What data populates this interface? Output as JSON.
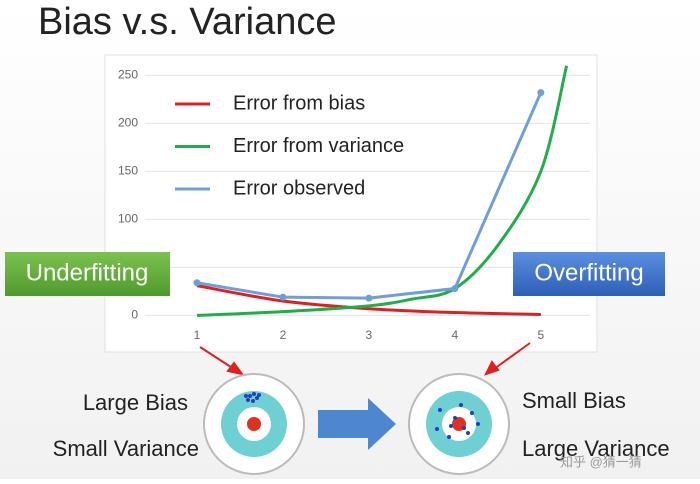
{
  "title": "Bias v.s. Variance",
  "chart_data": {
    "type": "line",
    "series": [
      {
        "name": "Error from bias",
        "color": "#e02020",
        "smooth": true,
        "markers": false,
        "x": [
          1,
          2,
          3,
          4,
          5
        ],
        "values": [
          31,
          15,
          7,
          3,
          1
        ]
      },
      {
        "name": "Error from variance",
        "color": "#1fae4a",
        "smooth": true,
        "markers": false,
        "x": [
          1,
          2,
          3,
          3.5,
          4,
          4.5,
          5,
          5.3
        ],
        "values": [
          0,
          4,
          10,
          17,
          28,
          73,
          150,
          260
        ]
      },
      {
        "name": "Error observed",
        "color": "#6f9fd8",
        "smooth": false,
        "markers": true,
        "x": [
          1,
          2,
          3,
          4,
          5
        ],
        "values": [
          34,
          19,
          18,
          28,
          232
        ]
      }
    ],
    "xlim": [
      0,
      5.7
    ],
    "xticks": [
      1,
      2,
      3,
      4,
      5
    ],
    "ylim": [
      -36,
      266
    ],
    "yticks": [
      0,
      50,
      100,
      150,
      200,
      250
    ],
    "grid": true,
    "legend": "upper-left"
  },
  "labels": {
    "underfitting": "Underfitting",
    "overfitting": "Overfitting",
    "left_top": "Large Bias",
    "left_bottom": "Small Variance",
    "right_top": "Small Bias",
    "right_bottom": "Large Variance",
    "watermark": "知乎 @猜一猜"
  }
}
